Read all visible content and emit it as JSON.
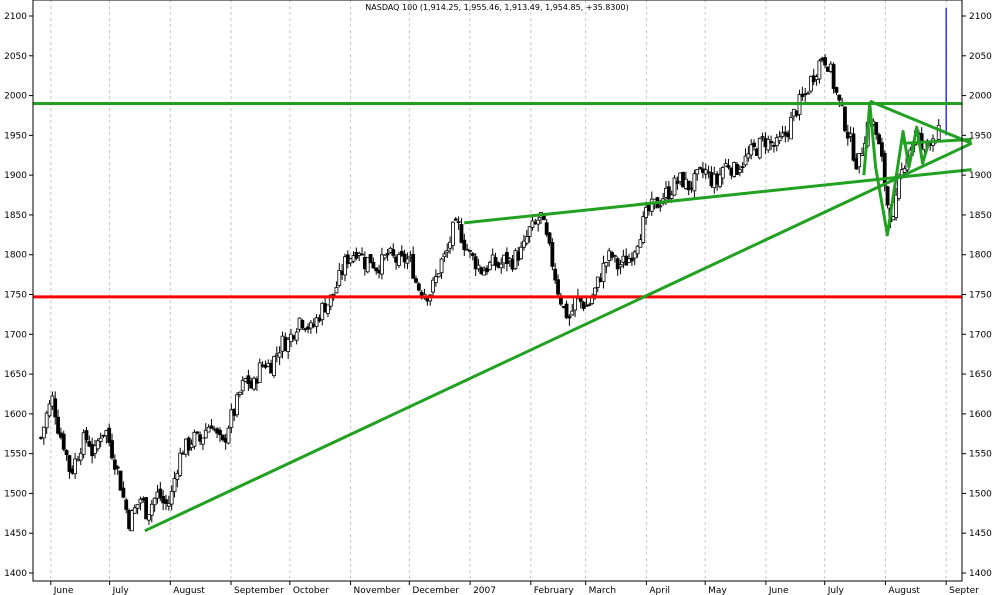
{
  "chart_data": {
    "type": "candlestick",
    "title": "NASDAQ 100 (1,914.25, 1,955.46, 1,913.49, 1,954.85, +35.8300)",
    "xlabel": "",
    "ylabel": "",
    "ylim": [
      1400,
      2100
    ],
    "y_ticks": [
      1400,
      1450,
      1500,
      1550,
      1600,
      1650,
      1700,
      1750,
      1800,
      1850,
      1900,
      1950,
      2000,
      2050,
      2100
    ],
    "y_ticks_both_sides": true,
    "x_range_days": [
      0,
      466
    ],
    "x_ticks": [
      {
        "day": 5,
        "label": "June"
      },
      {
        "day": 35,
        "label": "July"
      },
      {
        "day": 66,
        "label": "August"
      },
      {
        "day": 97,
        "label": "September"
      },
      {
        "day": 127,
        "label": "October"
      },
      {
        "day": 158,
        "label": "November"
      },
      {
        "day": 188,
        "label": "December"
      },
      {
        "day": 219,
        "label": "2007"
      },
      {
        "day": 250,
        "label": "February"
      },
      {
        "day": 278,
        "label": "March"
      },
      {
        "day": 309,
        "label": "April"
      },
      {
        "day": 339,
        "label": "May"
      },
      {
        "day": 370,
        "label": "June"
      },
      {
        "day": 400,
        "label": "July"
      },
      {
        "day": 431,
        "label": "August"
      },
      {
        "day": 462,
        "label": "Septer"
      }
    ],
    "grid": {
      "vertical": true,
      "horizontal": false
    },
    "price_path": [
      [
        0,
        1570
      ],
      [
        3,
        1600
      ],
      [
        6,
        1620
      ],
      [
        9,
        1580
      ],
      [
        12,
        1560
      ],
      [
        15,
        1525
      ],
      [
        18,
        1545
      ],
      [
        21,
        1565
      ],
      [
        24,
        1570
      ],
      [
        27,
        1545
      ],
      [
        30,
        1575
      ],
      [
        33,
        1580
      ],
      [
        36,
        1555
      ],
      [
        39,
        1530
      ],
      [
        42,
        1495
      ],
      [
        45,
        1465
      ],
      [
        48,
        1480
      ],
      [
        51,
        1495
      ],
      [
        54,
        1475
      ],
      [
        57,
        1490
      ],
      [
        60,
        1500
      ],
      [
        63,
        1485
      ],
      [
        66,
        1490
      ],
      [
        69,
        1530
      ],
      [
        72,
        1555
      ],
      [
        75,
        1560
      ],
      [
        78,
        1570
      ],
      [
        81,
        1565
      ],
      [
        84,
        1580
      ],
      [
        87,
        1590
      ],
      [
        90,
        1570
      ],
      [
        93,
        1560
      ],
      [
        96,
        1590
      ],
      [
        99,
        1605
      ],
      [
        102,
        1630
      ],
      [
        105,
        1645
      ],
      [
        108,
        1630
      ],
      [
        111,
        1655
      ],
      [
        114,
        1665
      ],
      [
        117,
        1660
      ],
      [
        120,
        1675
      ],
      [
        123,
        1690
      ],
      [
        126,
        1690
      ],
      [
        129,
        1705
      ],
      [
        132,
        1720
      ],
      [
        135,
        1715
      ],
      [
        138,
        1705
      ],
      [
        141,
        1720
      ],
      [
        144,
        1735
      ],
      [
        147,
        1740
      ],
      [
        150,
        1755
      ],
      [
        153,
        1775
      ],
      [
        156,
        1795
      ],
      [
        159,
        1800
      ],
      [
        162,
        1810
      ],
      [
        165,
        1790
      ],
      [
        168,
        1795
      ],
      [
        171,
        1785
      ],
      [
        174,
        1790
      ],
      [
        177,
        1800
      ],
      [
        180,
        1795
      ],
      [
        183,
        1790
      ],
      [
        186,
        1795
      ],
      [
        189,
        1790
      ],
      [
        192,
        1760
      ],
      [
        195,
        1755
      ],
      [
        198,
        1750
      ],
      [
        201,
        1765
      ],
      [
        204,
        1790
      ],
      [
        207,
        1800
      ],
      [
        210,
        1830
      ],
      [
        213,
        1835
      ],
      [
        216,
        1815
      ],
      [
        219,
        1800
      ],
      [
        222,
        1790
      ],
      [
        225,
        1780
      ],
      [
        228,
        1785
      ],
      [
        231,
        1790
      ],
      [
        234,
        1785
      ],
      [
        237,
        1795
      ],
      [
        240,
        1790
      ],
      [
        243,
        1800
      ],
      [
        246,
        1805
      ],
      [
        249,
        1830
      ],
      [
        252,
        1835
      ],
      [
        255,
        1850
      ],
      [
        258,
        1820
      ],
      [
        261,
        1790
      ],
      [
        264,
        1755
      ],
      [
        267,
        1730
      ],
      [
        270,
        1720
      ],
      [
        273,
        1745
      ],
      [
        276,
        1740
      ],
      [
        279,
        1735
      ],
      [
        282,
        1750
      ],
      [
        285,
        1770
      ],
      [
        288,
        1790
      ],
      [
        291,
        1800
      ],
      [
        294,
        1785
      ],
      [
        297,
        1790
      ],
      [
        300,
        1795
      ],
      [
        303,
        1810
      ],
      [
        306,
        1830
      ],
      [
        309,
        1850
      ],
      [
        312,
        1860
      ],
      [
        315,
        1865
      ],
      [
        318,
        1875
      ],
      [
        321,
        1880
      ],
      [
        324,
        1890
      ],
      [
        327,
        1895
      ],
      [
        330,
        1885
      ],
      [
        333,
        1890
      ],
      [
        336,
        1900
      ],
      [
        339,
        1905
      ],
      [
        342,
        1895
      ],
      [
        345,
        1890
      ],
      [
        348,
        1910
      ],
      [
        351,
        1915
      ],
      [
        354,
        1905
      ],
      [
        357,
        1915
      ],
      [
        360,
        1920
      ],
      [
        363,
        1930
      ],
      [
        366,
        1935
      ],
      [
        369,
        1945
      ],
      [
        372,
        1940
      ],
      [
        375,
        1935
      ],
      [
        378,
        1945
      ],
      [
        381,
        1955
      ],
      [
        384,
        1975
      ],
      [
        387,
        1990
      ],
      [
        390,
        2000
      ],
      [
        393,
        2020
      ],
      [
        396,
        2035
      ],
      [
        399,
        2050
      ],
      [
        402,
        2040
      ],
      [
        405,
        2010
      ],
      [
        408,
        1985
      ],
      [
        411,
        1960
      ],
      [
        414,
        1935
      ],
      [
        417,
        1910
      ],
      [
        420,
        1945
      ],
      [
        423,
        1975
      ],
      [
        426,
        1955
      ],
      [
        429,
        1920
      ],
      [
        432,
        1865
      ],
      [
        435,
        1840
      ],
      [
        438,
        1890
      ],
      [
        441,
        1920
      ],
      [
        444,
        1935
      ],
      [
        447,
        1955
      ],
      [
        450,
        1930
      ],
      [
        453,
        1945
      ],
      [
        456,
        1950
      ],
      [
        459,
        1955
      ]
    ],
    "extra_bar": {
      "day": 462,
      "low": 1950,
      "high": 2110,
      "color": "#0000ff"
    },
    "horizontal_lines": [
      {
        "y": 1990,
        "color": "#22a022"
      },
      {
        "y": 1747,
        "color": "#ff0000"
      }
    ],
    "trendlines": [
      {
        "from": [
          53,
          1453
        ],
        "to": [
          475,
          1940
        ],
        "color": "#22a022"
      },
      {
        "from": [
          216,
          1840
        ],
        "to": [
          475,
          1907
        ],
        "color": "#22a022"
      },
      {
        "from": [
          440,
          1940
        ],
        "to": [
          475,
          1945
        ],
        "color": "#22a022"
      }
    ],
    "pattern": {
      "points": [
        [
          420,
          1900
        ],
        [
          423,
          1990
        ],
        [
          426,
          1910
        ],
        [
          432,
          1825
        ],
        [
          440,
          1955
        ],
        [
          443,
          1910
        ],
        [
          447,
          1960
        ],
        [
          450,
          1915
        ],
        [
          453,
          1940
        ]
      ],
      "color": "#22a022"
    },
    "triangle_upper": {
      "from": [
        423,
        1993
      ],
      "to": [
        475,
        1940
      ],
      "color": "#22a022"
    }
  }
}
